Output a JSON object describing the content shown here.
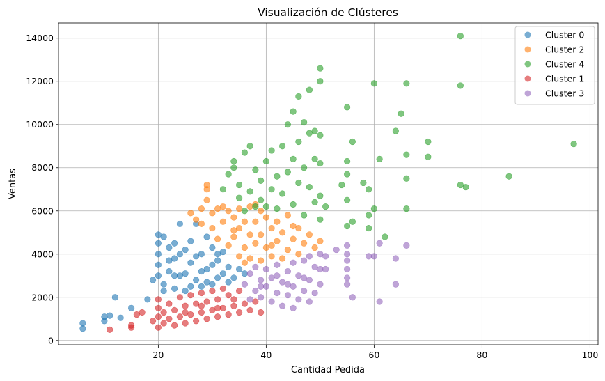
{
  "chart_data": {
    "type": "scatter",
    "title": "Visualización de Clústeres",
    "xlabel": "Cantidad Pedida",
    "ylabel": "Ventas",
    "xlim": [
      1.5,
      101.5
    ],
    "ylim": [
      -200,
      14700
    ],
    "xticks": [
      20,
      40,
      60,
      80,
      100
    ],
    "yticks": [
      0,
      2000,
      4000,
      6000,
      8000,
      10000,
      12000,
      14000
    ],
    "grid": true,
    "legend_position": "top-right",
    "series": [
      {
        "name": "Cluster 0",
        "color": "#1f77b4",
        "points": [
          [
            6,
            550
          ],
          [
            6,
            800
          ],
          [
            10,
            900
          ],
          [
            10,
            1100
          ],
          [
            11,
            1150
          ],
          [
            12,
            2000
          ],
          [
            13,
            1050
          ],
          [
            15,
            1500
          ],
          [
            18,
            1900
          ],
          [
            19,
            2800
          ],
          [
            20,
            3000
          ],
          [
            20,
            3500
          ],
          [
            20,
            4000
          ],
          [
            20,
            4500
          ],
          [
            20,
            4900
          ],
          [
            21,
            4800
          ],
          [
            21,
            2600
          ],
          [
            22,
            3200
          ],
          [
            22,
            4300
          ],
          [
            23,
            3800
          ],
          [
            23,
            2400
          ],
          [
            23,
            4500
          ],
          [
            24,
            5400
          ],
          [
            24,
            3000
          ],
          [
            25,
            4200
          ],
          [
            25,
            2300
          ],
          [
            26,
            3600
          ],
          [
            26,
            4600
          ],
          [
            27,
            2800
          ],
          [
            27,
            5400
          ],
          [
            28,
            4000
          ],
          [
            28,
            2500
          ],
          [
            29,
            4800
          ],
          [
            29,
            3300
          ],
          [
            30,
            2600
          ],
          [
            30,
            4300
          ],
          [
            31,
            3700
          ],
          [
            31,
            2900
          ],
          [
            32,
            3100
          ],
          [
            32,
            4100
          ],
          [
            33,
            3400
          ],
          [
            34,
            2900
          ],
          [
            35,
            3300
          ],
          [
            36,
            3100
          ],
          [
            21,
            2300
          ],
          [
            22,
            3700
          ],
          [
            24,
            4000
          ],
          [
            26,
            2500
          ],
          [
            27,
            3900
          ],
          [
            28,
            3200
          ],
          [
            29,
            2700
          ],
          [
            30,
            3500
          ],
          [
            31,
            4000
          ],
          [
            33,
            2700
          ],
          [
            25,
            3100
          ],
          [
            23,
            3000
          ]
        ]
      },
      {
        "name": "Cluster 2",
        "color": "#ff7f0e",
        "points": [
          [
            26,
            5900
          ],
          [
            27,
            5600
          ],
          [
            28,
            6100
          ],
          [
            29,
            6500
          ],
          [
            29,
            7000
          ],
          [
            29,
            7200
          ],
          [
            30,
            5200
          ],
          [
            30,
            5900
          ],
          [
            31,
            4700
          ],
          [
            32,
            5500
          ],
          [
            32,
            6200
          ],
          [
            33,
            6000
          ],
          [
            33,
            4400
          ],
          [
            34,
            4800
          ],
          [
            34,
            5700
          ],
          [
            35,
            3900
          ],
          [
            35,
            5200
          ],
          [
            35,
            6100
          ],
          [
            36,
            4300
          ],
          [
            36,
            5500
          ],
          [
            37,
            3800
          ],
          [
            37,
            4900
          ],
          [
            37,
            6200
          ],
          [
            38,
            4500
          ],
          [
            38,
            5500
          ],
          [
            38,
            6300
          ],
          [
            39,
            3700
          ],
          [
            39,
            4900
          ],
          [
            40,
            5700
          ],
          [
            40,
            4300
          ],
          [
            41,
            5200
          ],
          [
            41,
            3900
          ],
          [
            42,
            4600
          ],
          [
            42,
            5500
          ],
          [
            43,
            3800
          ],
          [
            43,
            5000
          ],
          [
            44,
            4200
          ],
          [
            44,
            5800
          ],
          [
            45,
            4700
          ],
          [
            46,
            4000
          ],
          [
            46,
            5200
          ],
          [
            47,
            4500
          ],
          [
            48,
            4900
          ],
          [
            49,
            4300
          ],
          [
            50,
            4600
          ],
          [
            28,
            5400
          ],
          [
            31,
            6100
          ],
          [
            34,
            5100
          ],
          [
            36,
            3600
          ],
          [
            39,
            6000
          ],
          [
            41,
            4400
          ],
          [
            45,
            5300
          ]
        ]
      },
      {
        "name": "Cluster 4",
        "color": "#2ca02c",
        "points": [
          [
            32,
            7000
          ],
          [
            33,
            7700
          ],
          [
            34,
            8000
          ],
          [
            34,
            8300
          ],
          [
            35,
            6600
          ],
          [
            35,
            7200
          ],
          [
            36,
            6000
          ],
          [
            36,
            8700
          ],
          [
            37,
            6900
          ],
          [
            37,
            9000
          ],
          [
            38,
            6200
          ],
          [
            38,
            7900
          ],
          [
            39,
            6500
          ],
          [
            39,
            7400
          ],
          [
            40,
            8300
          ],
          [
            40,
            6200
          ],
          [
            41,
            8800
          ],
          [
            41,
            7000
          ],
          [
            42,
            7600
          ],
          [
            42,
            6100
          ],
          [
            43,
            9000
          ],
          [
            43,
            6800
          ],
          [
            44,
            10000
          ],
          [
            44,
            7800
          ],
          [
            45,
            10600
          ],
          [
            45,
            8400
          ],
          [
            45,
            6300
          ],
          [
            46,
            11300
          ],
          [
            46,
            9200
          ],
          [
            46,
            7300
          ],
          [
            47,
            10100
          ],
          [
            47,
            8000
          ],
          [
            47,
            5800
          ],
          [
            48,
            11600
          ],
          [
            48,
            9600
          ],
          [
            48,
            7100
          ],
          [
            49,
            9700
          ],
          [
            49,
            8400
          ],
          [
            49,
            6400
          ],
          [
            50,
            12600
          ],
          [
            50,
            12000
          ],
          [
            50,
            9500
          ],
          [
            50,
            8200
          ],
          [
            50,
            6700
          ],
          [
            50,
            5600
          ],
          [
            51,
            6200
          ],
          [
            54,
            7200
          ],
          [
            55,
            10800
          ],
          [
            55,
            8300
          ],
          [
            55,
            7700
          ],
          [
            55,
            6500
          ],
          [
            55,
            5300
          ],
          [
            56,
            9200
          ],
          [
            56,
            5500
          ],
          [
            58,
            7300
          ],
          [
            59,
            7000
          ],
          [
            59,
            5800
          ],
          [
            59,
            5200
          ],
          [
            60,
            11900
          ],
          [
            60,
            6100
          ],
          [
            61,
            8400
          ],
          [
            62,
            4800
          ],
          [
            64,
            9700
          ],
          [
            65,
            10500
          ],
          [
            66,
            11900
          ],
          [
            66,
            8600
          ],
          [
            66,
            7500
          ],
          [
            66,
            6100
          ],
          [
            70,
            9200
          ],
          [
            70,
            8500
          ],
          [
            76,
            14100
          ],
          [
            76,
            11800
          ],
          [
            76,
            7200
          ],
          [
            77,
            7100
          ],
          [
            85,
            7600
          ],
          [
            97,
            9100
          ]
        ]
      },
      {
        "name": "Cluster 1",
        "color": "#d62728",
        "points": [
          [
            11,
            500
          ],
          [
            15,
            700
          ],
          [
            15,
            600
          ],
          [
            16,
            1200
          ],
          [
            17,
            1300
          ],
          [
            19,
            900
          ],
          [
            20,
            600
          ],
          [
            20,
            1100
          ],
          [
            20,
            1500
          ],
          [
            20,
            1900
          ],
          [
            21,
            800
          ],
          [
            21,
            1300
          ],
          [
            22,
            1000
          ],
          [
            22,
            1700
          ],
          [
            23,
            700
          ],
          [
            23,
            1400
          ],
          [
            24,
            1100
          ],
          [
            24,
            2000
          ],
          [
            25,
            800
          ],
          [
            25,
            1600
          ],
          [
            26,
            1200
          ],
          [
            26,
            2100
          ],
          [
            27,
            900
          ],
          [
            27,
            1700
          ],
          [
            28,
            1300
          ],
          [
            28,
            2200
          ],
          [
            29,
            1000
          ],
          [
            29,
            1800
          ],
          [
            30,
            1400
          ],
          [
            30,
            2300
          ],
          [
            31,
            1100
          ],
          [
            31,
            1900
          ],
          [
            32,
            1500
          ],
          [
            32,
            2400
          ],
          [
            33,
            1200
          ],
          [
            33,
            2100
          ],
          [
            34,
            1600
          ],
          [
            35,
            1300
          ],
          [
            35,
            2300
          ],
          [
            36,
            1700
          ],
          [
            37,
            1400
          ],
          [
            38,
            1800
          ],
          [
            39,
            1300
          ],
          [
            25,
            1300
          ],
          [
            28,
            1600
          ],
          [
            31,
            1500
          ],
          [
            34,
            1900
          ]
        ]
      },
      {
        "name": "Cluster 3",
        "color": "#9467bd",
        "points": [
          [
            36,
            2600
          ],
          [
            37,
            1900
          ],
          [
            37,
            3100
          ],
          [
            38,
            2300
          ],
          [
            38,
            3400
          ],
          [
            39,
            2000
          ],
          [
            39,
            2800
          ],
          [
            40,
            2500
          ],
          [
            40,
            3300
          ],
          [
            41,
            1800
          ],
          [
            41,
            2900
          ],
          [
            42,
            2200
          ],
          [
            42,
            3500
          ],
          [
            43,
            1600
          ],
          [
            43,
            2700
          ],
          [
            44,
            2100
          ],
          [
            44,
            3200
          ],
          [
            45,
            1500
          ],
          [
            45,
            2500
          ],
          [
            45,
            3600
          ],
          [
            46,
            1900
          ],
          [
            46,
            3000
          ],
          [
            47,
            2300
          ],
          [
            47,
            3700
          ],
          [
            48,
            1800
          ],
          [
            48,
            2800
          ],
          [
            48,
            3900
          ],
          [
            49,
            2200
          ],
          [
            49,
            3400
          ],
          [
            50,
            2600
          ],
          [
            50,
            3300
          ],
          [
            50,
            4000
          ],
          [
            51,
            3900
          ],
          [
            51,
            3300
          ],
          [
            53,
            4200
          ],
          [
            55,
            4400
          ],
          [
            55,
            4000
          ],
          [
            55,
            3700
          ],
          [
            55,
            3300
          ],
          [
            55,
            2900
          ],
          [
            55,
            2600
          ],
          [
            56,
            2000
          ],
          [
            59,
            3900
          ],
          [
            60,
            3900
          ],
          [
            61,
            4500
          ],
          [
            61,
            1800
          ],
          [
            64,
            3800
          ],
          [
            64,
            2600
          ],
          [
            66,
            4400
          ],
          [
            39,
            2500
          ],
          [
            42,
            3000
          ],
          [
            44,
            2600
          ],
          [
            47,
            2900
          ]
        ]
      }
    ]
  }
}
